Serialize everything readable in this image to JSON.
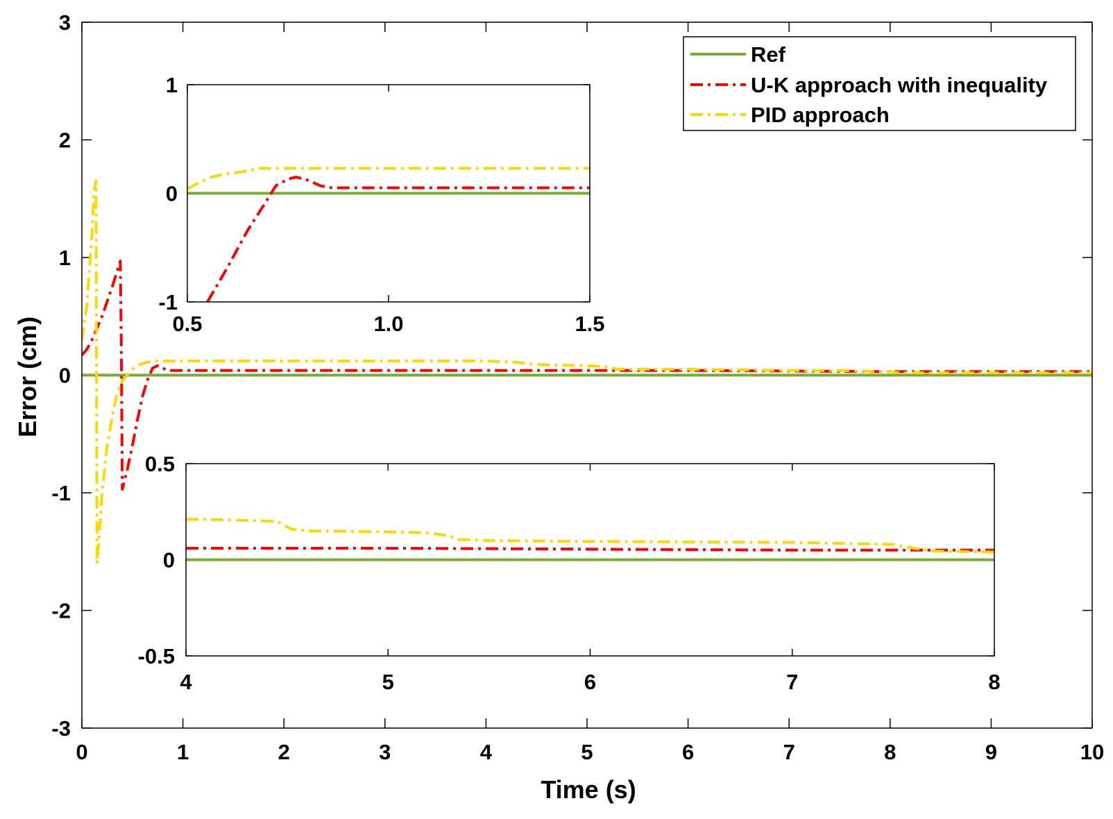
{
  "colors": {
    "ref": "#77ac30",
    "uk": "#ff0000",
    "pid": "#ffd700",
    "axes": "#000000",
    "background": "#ffffff"
  },
  "chart_data": [
    {
      "id": "main",
      "type": "line",
      "title": "",
      "xlabel": "Time (s)",
      "ylabel": "Error (cm)",
      "xlim": [
        0,
        10
      ],
      "ylim": [
        -3,
        3
      ],
      "xticks": [
        0,
        1,
        2,
        3,
        4,
        5,
        6,
        7,
        8,
        9,
        10
      ],
      "xtick_labels": [
        "0",
        "1",
        "2",
        "3",
        "4",
        "5",
        "6",
        "7",
        "8",
        "9",
        "10"
      ],
      "yticks": [
        -3,
        -2,
        -1,
        0,
        1,
        2,
        3
      ],
      "ytick_labels": [
        "-3",
        "-2",
        "-1",
        "0",
        "1",
        "2",
        "3"
      ],
      "legend": {
        "position": "top-right",
        "entries": [
          "Ref",
          "U-K approach with inequality",
          "PID approach"
        ]
      },
      "series": [
        {
          "name": "Ref",
          "style": "solid",
          "color_key": "ref",
          "x": [
            0,
            10
          ],
          "y": [
            0,
            0
          ]
        },
        {
          "name": "U-K approach with inequality",
          "style": "dashdot",
          "color_key": "uk",
          "x": [
            0,
            0.05,
            0.1,
            0.2,
            0.3,
            0.38,
            0.39,
            0.4,
            0.45,
            0.5,
            0.55,
            0.6,
            0.65,
            0.7,
            0.75,
            0.8,
            0.85,
            0.9,
            1,
            2,
            3,
            4,
            5,
            6,
            7,
            8,
            9,
            10
          ],
          "y": [
            0.17,
            0.22,
            0.3,
            0.5,
            0.75,
            0.97,
            0.3,
            -0.97,
            -0.8,
            -0.6,
            -0.38,
            -0.18,
            -0.04,
            0.06,
            0.08,
            0.06,
            0.04,
            0.04,
            0.04,
            0.04,
            0.04,
            0.04,
            0.04,
            0.04,
            0.035,
            0.03,
            0.03,
            0.03
          ]
        },
        {
          "name": "PID approach",
          "style": "dashdot",
          "color_key": "pid",
          "x": [
            0,
            0.05,
            0.1,
            0.12,
            0.14,
            0.15,
            0.17,
            0.2,
            0.25,
            0.3,
            0.35,
            0.4,
            0.45,
            0.5,
            0.55,
            0.6,
            0.65,
            0.7,
            0.8,
            1,
            2,
            3,
            4,
            4.3,
            4.5,
            5,
            5.2,
            5.3,
            6,
            7,
            7.5,
            8,
            8.1,
            9,
            10
          ],
          "y": [
            0.3,
            0.6,
            1.2,
            1.55,
            1.65,
            -1.6,
            -1.4,
            -1.0,
            -0.6,
            -0.35,
            -0.15,
            -0.05,
            0.0,
            0.05,
            0.08,
            0.1,
            0.11,
            0.12,
            0.12,
            0.12,
            0.12,
            0.12,
            0.12,
            0.11,
            0.09,
            0.08,
            0.07,
            0.05,
            0.05,
            0.04,
            0.04,
            0.03,
            0.02,
            0.02,
            0.02
          ]
        }
      ]
    },
    {
      "id": "inset-top",
      "type": "line",
      "xlim": [
        0.5,
        1.5
      ],
      "ylim": [
        -1,
        1
      ],
      "xticks": [
        0.5,
        1.0,
        1.5
      ],
      "xtick_labels": [
        "0.5",
        "1.0",
        "1.5"
      ],
      "yticks": [
        -1,
        0,
        1
      ],
      "ytick_labels": [
        "-1",
        "0",
        "1"
      ],
      "series": [
        {
          "name": "Ref",
          "style": "solid",
          "color_key": "ref",
          "x": [
            0.5,
            1.5
          ],
          "y": [
            0,
            0
          ]
        },
        {
          "name": "U-K approach with inequality",
          "style": "dashdot",
          "color_key": "uk",
          "x": [
            0.55,
            0.6,
            0.65,
            0.7,
            0.72,
            0.75,
            0.77,
            0.8,
            0.83,
            0.86,
            0.9,
            1.0,
            1.2,
            1.5
          ],
          "y": [
            -1.0,
            -0.68,
            -0.34,
            -0.05,
            0.07,
            0.13,
            0.15,
            0.12,
            0.07,
            0.05,
            0.05,
            0.05,
            0.05,
            0.05
          ]
        },
        {
          "name": "PID approach",
          "style": "dashdot",
          "color_key": "pid",
          "x": [
            0.5,
            0.53,
            0.56,
            0.6,
            0.64,
            0.68,
            0.72,
            0.8,
            1.0,
            1.5
          ],
          "y": [
            0.04,
            0.1,
            0.15,
            0.18,
            0.2,
            0.23,
            0.23,
            0.23,
            0.23,
            0.23
          ]
        }
      ]
    },
    {
      "id": "inset-bottom",
      "type": "line",
      "xlim": [
        4,
        8
      ],
      "ylim": [
        -0.5,
        0.5
      ],
      "xticks": [
        4,
        5,
        6,
        7,
        8
      ],
      "xtick_labels": [
        "4",
        "5",
        "6",
        "7",
        "8"
      ],
      "yticks": [
        -0.5,
        0,
        0.5
      ],
      "ytick_labels": [
        "-0.5",
        "0",
        "0.5"
      ],
      "series": [
        {
          "name": "Ref",
          "style": "solid",
          "color_key": "ref",
          "x": [
            4,
            8
          ],
          "y": [
            0,
            0
          ]
        },
        {
          "name": "U-K approach with inequality",
          "style": "dashdot",
          "color_key": "uk",
          "x": [
            4,
            5,
            6,
            7,
            7.5,
            8
          ],
          "y": [
            0.06,
            0.06,
            0.055,
            0.05,
            0.05,
            0.05
          ]
        },
        {
          "name": "PID approach",
          "style": "dashdot",
          "color_key": "pid",
          "x": [
            4,
            4.1,
            4.45,
            4.52,
            4.6,
            5,
            5.2,
            5.3,
            5.35,
            5.5,
            6,
            7,
            7.5,
            7.6,
            7.7,
            8
          ],
          "y": [
            0.21,
            0.21,
            0.2,
            0.16,
            0.15,
            0.145,
            0.14,
            0.125,
            0.105,
            0.1,
            0.095,
            0.09,
            0.08,
            0.06,
            0.045,
            0.04
          ]
        }
      ]
    }
  ]
}
